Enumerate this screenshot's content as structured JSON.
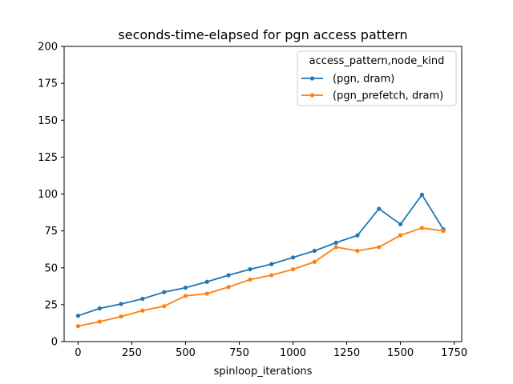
{
  "chart_data": {
    "type": "line",
    "title": "seconds-time-elapsed for pgn access pattern",
    "xlabel": "spinloop_iterations",
    "ylabel": "",
    "xlim": [
      -65,
      1785
    ],
    "ylim": [
      0,
      200
    ],
    "xticks": [
      0,
      250,
      500,
      750,
      1000,
      1250,
      1500,
      1750
    ],
    "yticks": [
      0,
      25,
      50,
      75,
      100,
      125,
      150,
      175,
      200
    ],
    "grid": false,
    "legend": {
      "title": "access_pattern,node_kind",
      "placement": "top-right"
    },
    "x": [
      0,
      100,
      200,
      300,
      400,
      500,
      600,
      700,
      800,
      900,
      1000,
      1100,
      1200,
      1300,
      1400,
      1500,
      1600,
      1700
    ],
    "series": [
      {
        "name": "(pgn, dram)",
        "color": "#1f77b4",
        "values": [
          17.5,
          22.5,
          25.5,
          29,
          33.5,
          36.5,
          40.5,
          45,
          49,
          52.5,
          57,
          61.5,
          67,
          72,
          90,
          79.5,
          99.5,
          76
        ]
      },
      {
        "name": "(pgn_prefetch, dram)",
        "color": "#ff7f0e",
        "values": [
          10.5,
          13.5,
          17,
          21,
          24,
          31,
          32.5,
          37,
          42,
          45,
          49,
          54,
          64,
          61.5,
          64,
          72,
          77,
          75
        ]
      }
    ]
  }
}
